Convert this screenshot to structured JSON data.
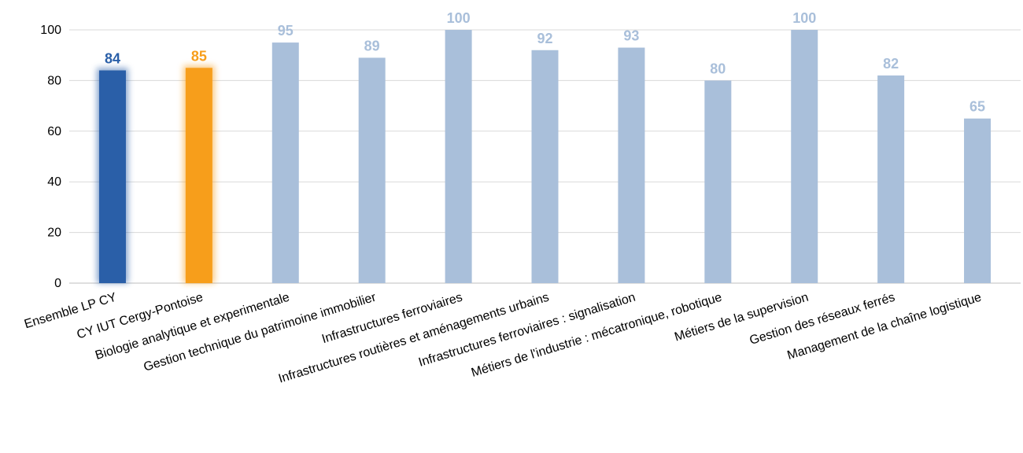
{
  "chart_data": {
    "type": "bar",
    "title": "",
    "xlabel": "",
    "ylabel": "",
    "ylim": [
      0,
      100
    ],
    "yticks": [
      0,
      20,
      40,
      60,
      80,
      100
    ],
    "grid": true,
    "legend": "none",
    "categories": [
      "Ensemble LP CY",
      "CY IUT Cergy-Pontoise",
      "Biologie analytique et experimentale",
      "Gestion technique du patrimoine immobilier",
      "Infrastructures ferroviaires",
      "Infrastructures routières et aménagements urbains",
      "Infrastructures ferroviaires : signalisation",
      "Métiers de l'industrie : mécatronique, robotique",
      "Métiers de la supervision",
      "Gestion des réseaux ferrés",
      "Management de la chaîne logistique"
    ],
    "values": [
      84,
      85,
      95,
      89,
      100,
      92,
      93,
      80,
      100,
      82,
      65
    ],
    "colors": [
      "#2a5fa8",
      "#f79e1b",
      "#a9bfda",
      "#a9bfda",
      "#a9bfda",
      "#a9bfda",
      "#a9bfda",
      "#a9bfda",
      "#a9bfda",
      "#a9bfda",
      "#a9bfda"
    ],
    "highlight_glow": [
      true,
      true,
      false,
      false,
      false,
      false,
      false,
      false,
      false,
      false,
      false
    ]
  }
}
